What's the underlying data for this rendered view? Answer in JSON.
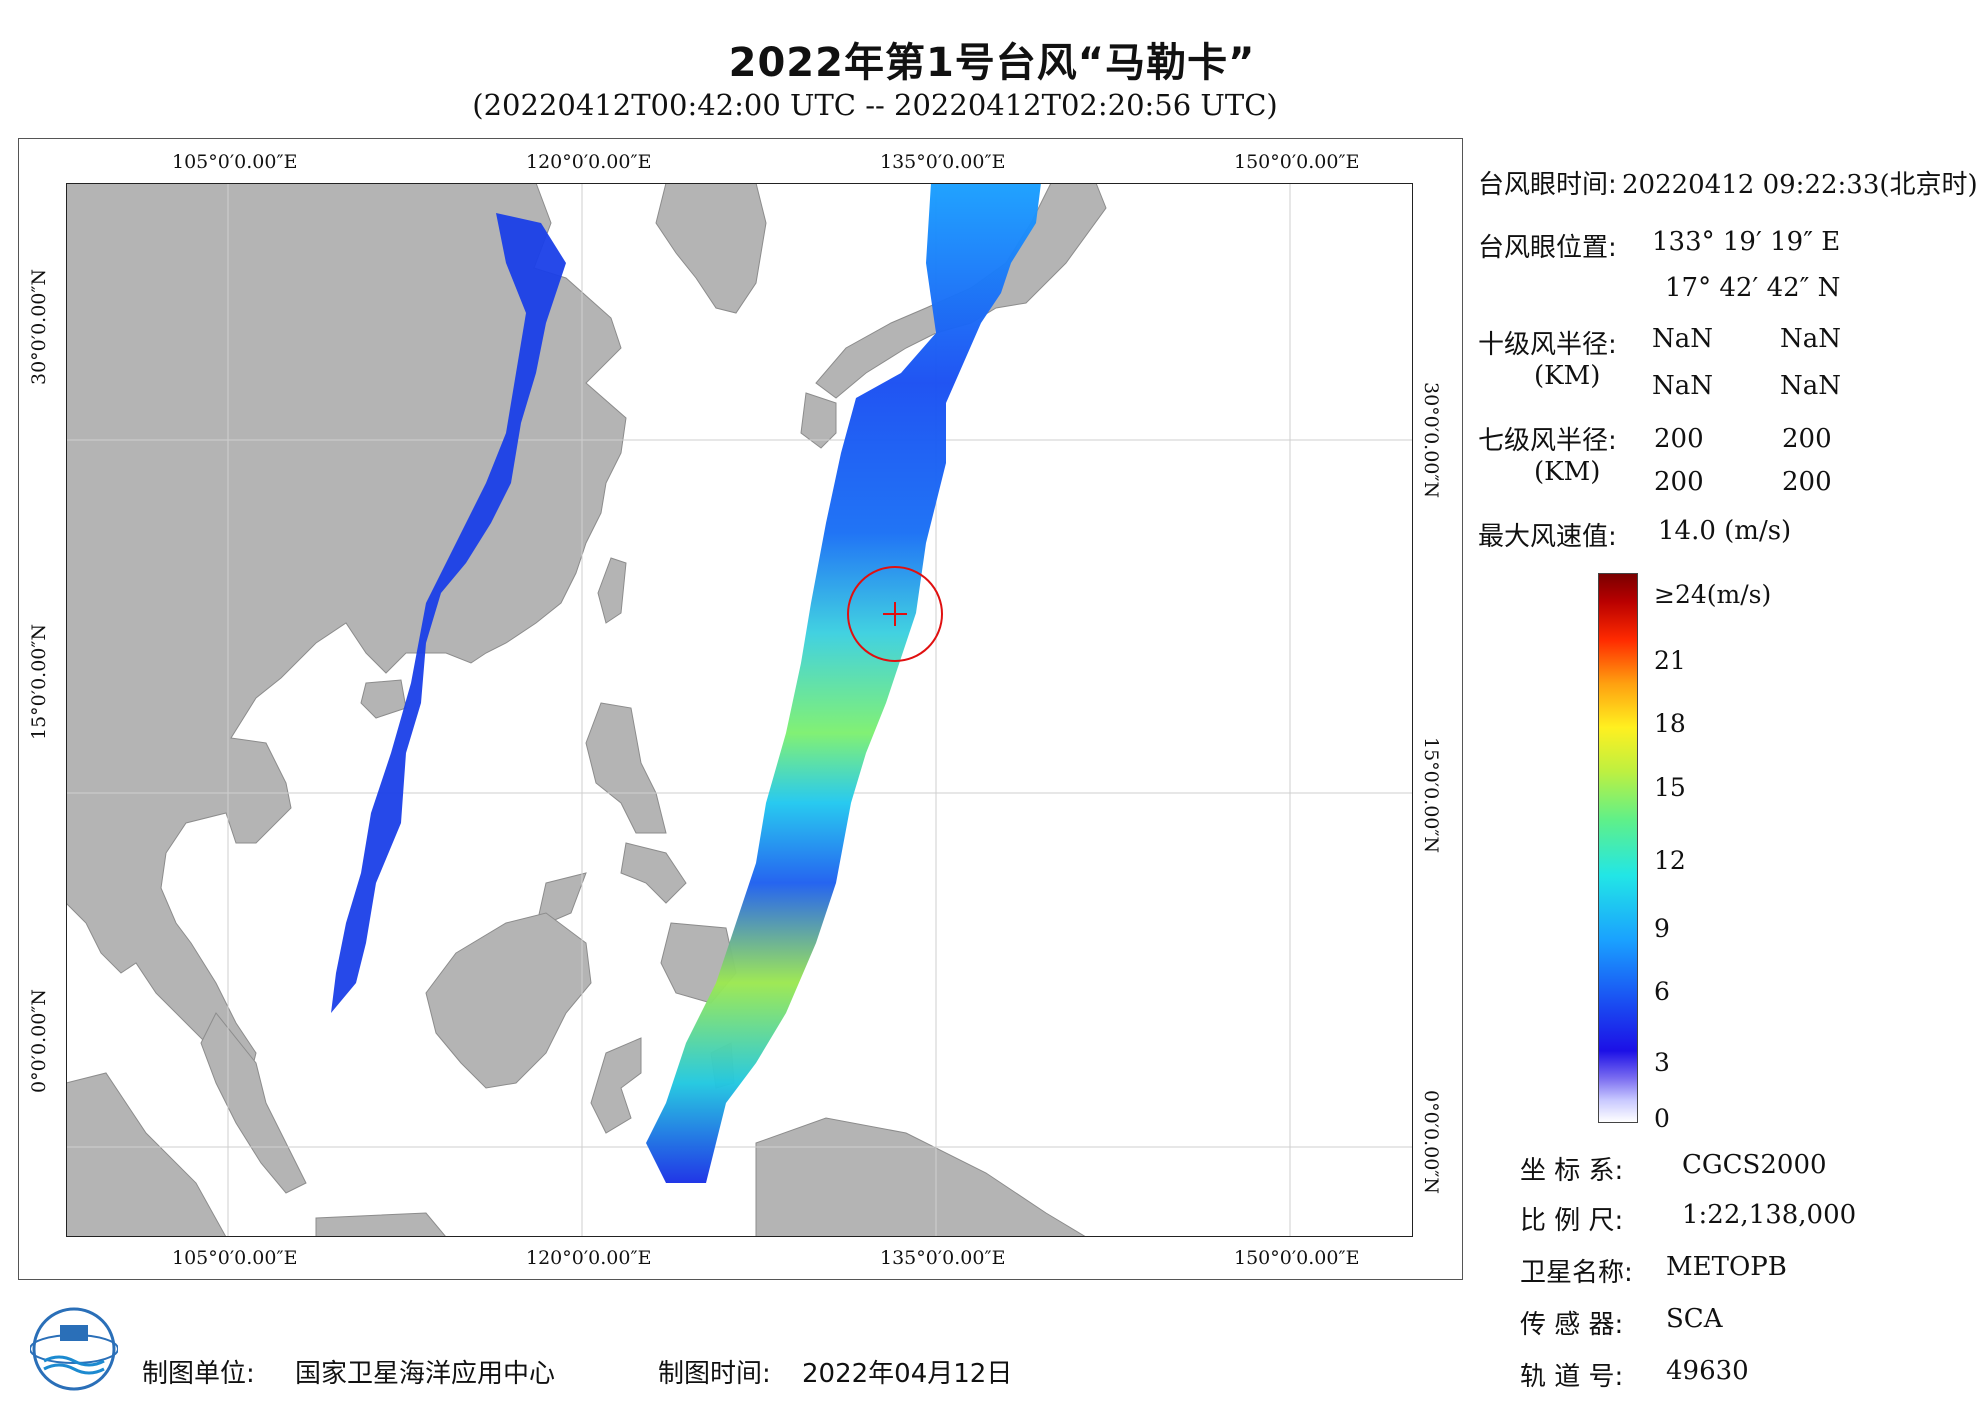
{
  "title": "2022年第1号台风“马勒卡”",
  "subtitle": "(20220412T00:42:00 UTC -- 20220412T02:20:56 UTC)",
  "ticks": {
    "lon": [
      "105°0′0.00″E",
      "120°0′0.00″E",
      "135°0′0.00″E",
      "150°0′0.00″E"
    ],
    "lat": [
      "30°0′0.00″N",
      "15°0′0.00″N",
      "0°0′0.00″N"
    ]
  },
  "info": {
    "eye_time_label": "台风眼时间:",
    "eye_time_value": "20220412 09:22:33(北京时)",
    "eye_pos_label": "台风眼位置:",
    "eye_lon": "133° 19′ 19″ E",
    "eye_lat": "17° 42′ 42″ N",
    "r10_label": "十级风半径:",
    "r10_unit": "(KM)",
    "r10_values": [
      "NaN",
      "NaN",
      "NaN",
      "NaN"
    ],
    "r7_label": "七级风半径:",
    "r7_unit": "(KM)",
    "r7_values": [
      "200",
      "200",
      "200",
      "200"
    ],
    "max_wind_label": "最大风速值:",
    "max_wind_value": "14.0  (m/s)"
  },
  "colorbar": {
    "labels": [
      "≥24(m/s)",
      "21",
      "18",
      "15",
      "12",
      "9",
      "6",
      "3",
      "0"
    ]
  },
  "meta": {
    "coord_label": "坐 标 系:",
    "coord_value": "CGCS2000",
    "scale_label": "比 例 尺:",
    "scale_value": "1:22,138,000",
    "sat_label": "卫星名称:",
    "sat_value": "METOPB",
    "sensor_label": "传 感 器:",
    "sensor_value": "SCA",
    "orbit_label": "轨 道 号:",
    "orbit_value": "49630"
  },
  "footer": {
    "maker_label": "制图单位:",
    "maker_value": "国家卫星海洋应用中心",
    "date_label": "制图时间:",
    "date_value": "2022年04月12日"
  },
  "colors": {
    "land": "#b4b4b4",
    "ocean": "#ffffff",
    "eye_circle": "#e01010"
  }
}
